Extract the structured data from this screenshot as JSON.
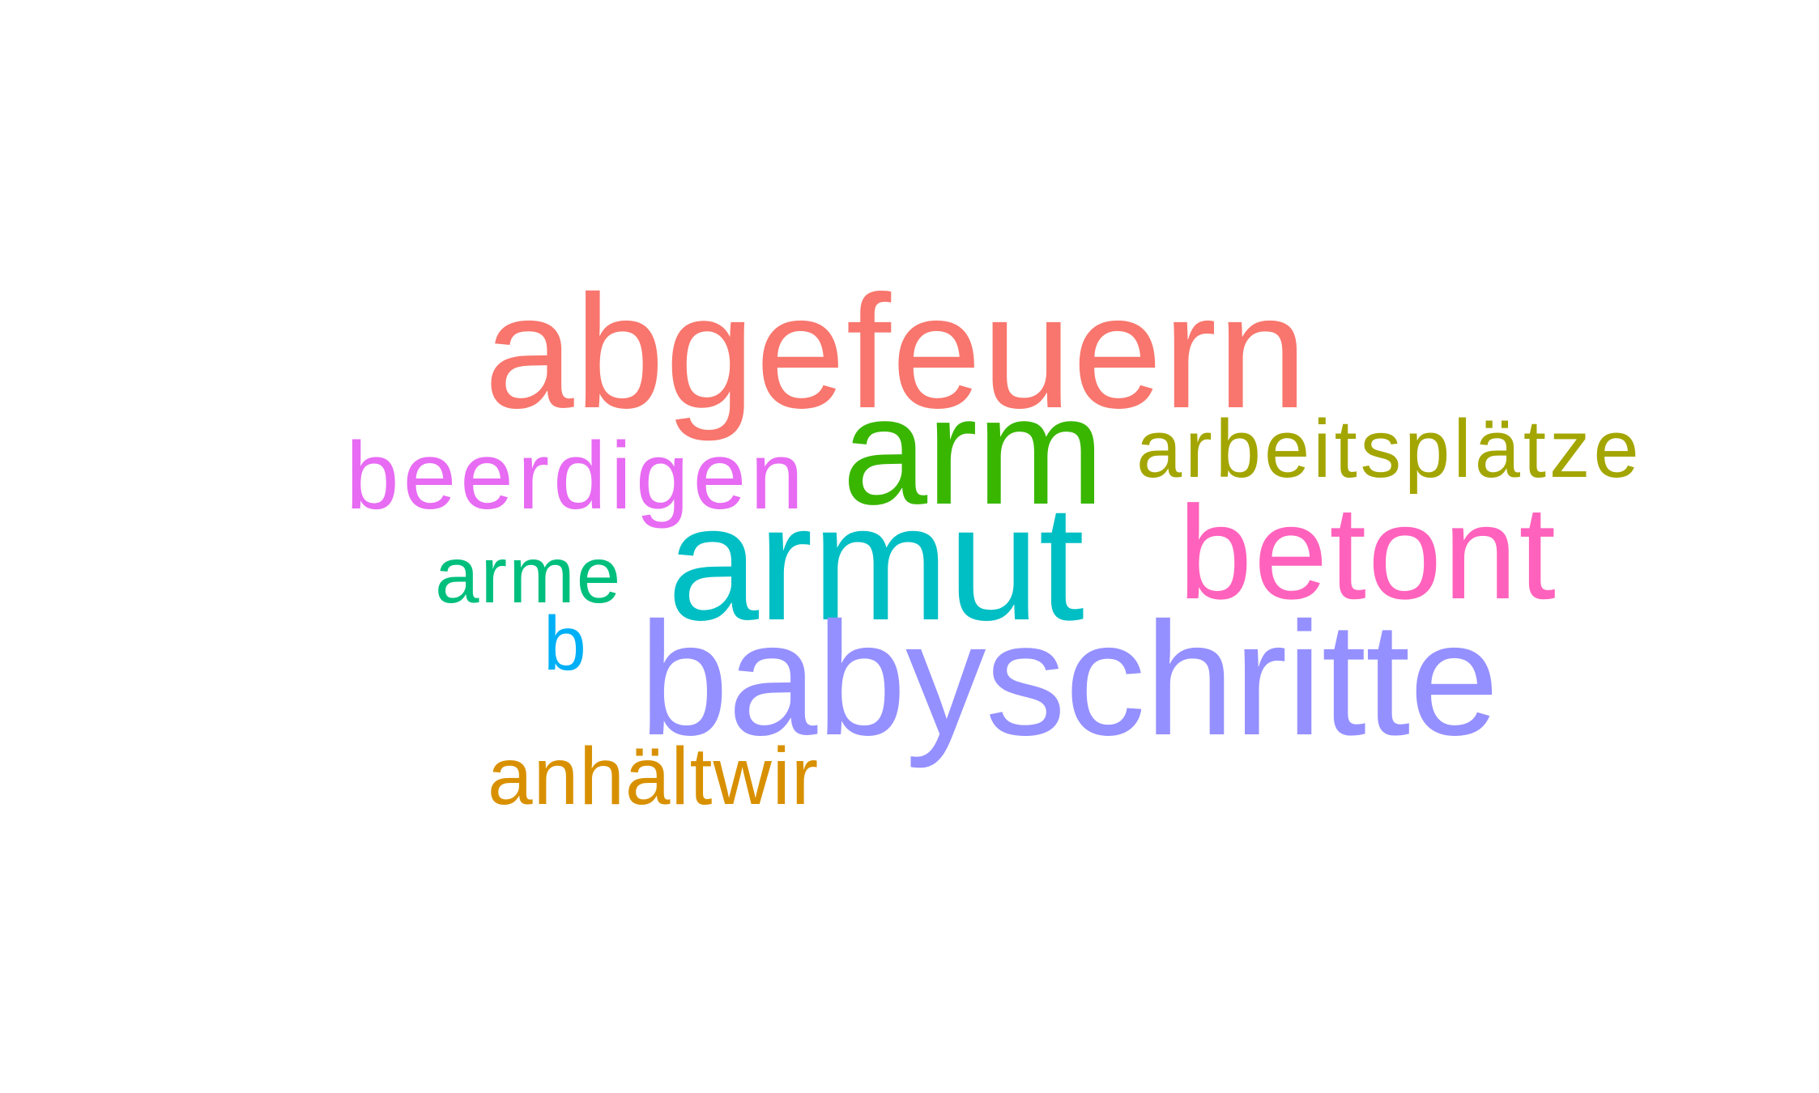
{
  "words": [
    {
      "text": "abgefeuern",
      "color": "#F8766D"
    },
    {
      "text": "arm",
      "color": "#39B600"
    },
    {
      "text": "arbeitsplätze",
      "color": "#A3A500"
    },
    {
      "text": "beerdigen",
      "color": "#E76BF3"
    },
    {
      "text": "armut",
      "color": "#00BFC4"
    },
    {
      "text": "betont",
      "color": "#FF62BC"
    },
    {
      "text": "arme",
      "color": "#00BF7D"
    },
    {
      "text": "b",
      "color": "#00B0F6"
    },
    {
      "text": "babyschritte",
      "color": "#9590FF"
    },
    {
      "text": "anhältwir",
      "color": "#D89000"
    }
  ]
}
